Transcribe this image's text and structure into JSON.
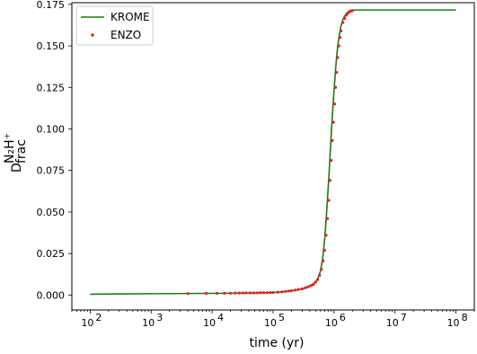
{
  "chart_data": {
    "type": "line",
    "xscale": "log",
    "xlabel": "time (yr)",
    "ylabel": {
      "base": "D",
      "sub": "frac",
      "sup": "N₂H⁺"
    },
    "xlim": [
      50,
      200000000
    ],
    "ylim": [
      -0.009,
      0.176
    ],
    "x_ticks": [
      {
        "value": 100,
        "label": "10",
        "exp": "2"
      },
      {
        "value": 1000,
        "label": "10",
        "exp": "3"
      },
      {
        "value": 10000,
        "label": "10",
        "exp": "4"
      },
      {
        "value": 100000,
        "label": "10",
        "exp": "5"
      },
      {
        "value": 1000000,
        "label": "10",
        "exp": "6"
      },
      {
        "value": 10000000,
        "label": "10",
        "exp": "7"
      },
      {
        "value": 100000000,
        "label": "10",
        "exp": "8"
      }
    ],
    "y_ticks": [
      {
        "value": 0.0,
        "label": "0.000"
      },
      {
        "value": 0.025,
        "label": "0.025"
      },
      {
        "value": 0.05,
        "label": "0.050"
      },
      {
        "value": 0.075,
        "label": "0.075"
      },
      {
        "value": 0.1,
        "label": "0.100"
      },
      {
        "value": 0.125,
        "label": "0.125"
      },
      {
        "value": 0.15,
        "label": "0.150"
      },
      {
        "value": 0.175,
        "label": "0.175"
      }
    ],
    "grid": false,
    "legend_position": "top-left",
    "series": [
      {
        "name": "KROME",
        "style": "line",
        "color": "#1a7a1a",
        "x": [
          100,
          1000,
          10000,
          50000,
          100000,
          150000,
          200000,
          250000,
          300000,
          350000,
          400000,
          450000,
          500000,
          550000,
          600000,
          650000,
          700000,
          750000,
          800000,
          850000,
          900000,
          950000,
          1000000,
          1050000,
          1100000,
          1150000,
          1200000,
          1300000,
          1400000,
          1500000,
          1600000,
          1700000,
          1800000,
          1900000,
          2000000,
          2500000,
          5000000,
          10000000,
          100000000
        ],
        "y": [
          0.0005,
          0.0008,
          0.001,
          0.0012,
          0.0015,
          0.002,
          0.0025,
          0.003,
          0.0036,
          0.0044,
          0.0054,
          0.0066,
          0.008,
          0.0105,
          0.0145,
          0.022,
          0.033,
          0.048,
          0.064,
          0.08,
          0.097,
          0.111,
          0.123,
          0.134,
          0.143,
          0.15,
          0.155,
          0.162,
          0.166,
          0.168,
          0.1695,
          0.1705,
          0.171,
          0.1713,
          0.1715,
          0.1716,
          0.1716,
          0.1716,
          0.1716
        ]
      },
      {
        "name": "ENZO",
        "style": "scatter",
        "color": "#e8201b",
        "x": [
          4000,
          8000,
          12000,
          16000,
          20000,
          24000,
          28000,
          32000,
          36000,
          42000,
          48000,
          55000,
          62000,
          70000,
          80000,
          90000,
          100000,
          120000,
          140000,
          160000,
          180000,
          200000,
          230000,
          260000,
          300000,
          340000,
          380000,
          420000,
          460000,
          500000,
          540000,
          580000,
          620000,
          660000,
          700000,
          740000,
          780000,
          820000,
          860000,
          900000,
          940000,
          980000,
          1020000,
          1060000,
          1100000,
          1150000,
          1200000,
          1250000,
          1300000,
          1400000,
          1500000,
          1600000,
          1700000,
          1800000,
          1900000,
          2000000
        ],
        "y": [
          0.0009,
          0.001,
          0.001,
          0.0011,
          0.0011,
          0.0012,
          0.0012,
          0.0012,
          0.0013,
          0.0013,
          0.0013,
          0.0013,
          0.0014,
          0.0014,
          0.0014,
          0.0015,
          0.0015,
          0.0017,
          0.0019,
          0.0022,
          0.0024,
          0.0026,
          0.003,
          0.0034,
          0.0037,
          0.0044,
          0.005,
          0.0057,
          0.0064,
          0.0078,
          0.0094,
          0.0118,
          0.0155,
          0.0205,
          0.027,
          0.036,
          0.046,
          0.057,
          0.069,
          0.081,
          0.093,
          0.104,
          0.115,
          0.125,
          0.134,
          0.143,
          0.15,
          0.155,
          0.159,
          0.164,
          0.1665,
          0.1685,
          0.1698,
          0.1706,
          0.171,
          0.1712
        ]
      }
    ]
  }
}
